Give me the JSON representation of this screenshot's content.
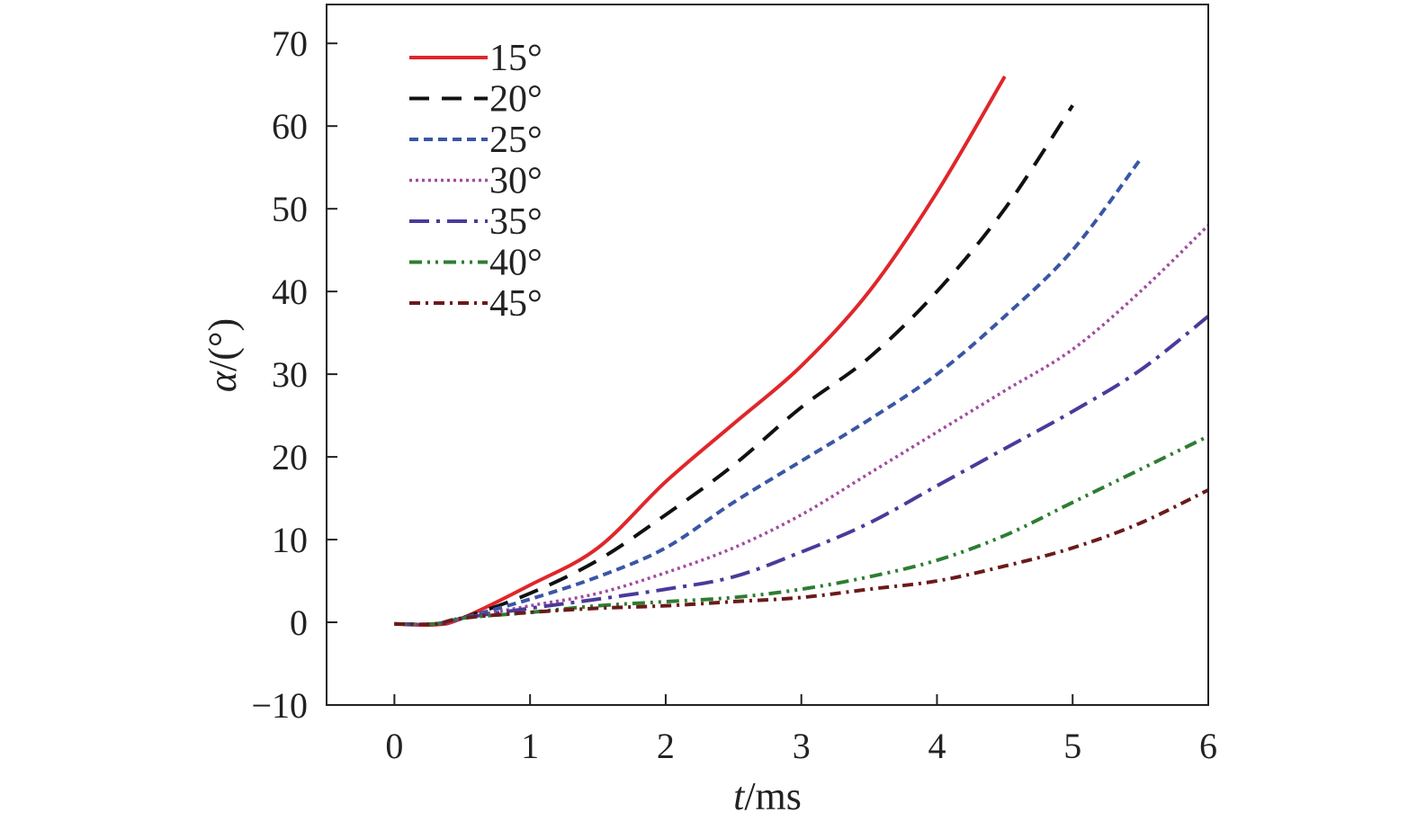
{
  "chart_data": {
    "type": "line",
    "title": "",
    "xlabel_italic": "t",
    "xlabel_rest": "/ms",
    "ylabel_italic": "α",
    "ylabel_rest": "/(°)",
    "xlim": [
      -0.5,
      6
    ],
    "ylim": [
      -10,
      74.7
    ],
    "xticks": [
      0,
      1,
      2,
      3,
      4,
      5,
      6
    ],
    "yticks": [
      -10,
      0,
      10,
      20,
      30,
      40,
      50,
      60,
      70
    ],
    "ytick_labels": [
      "−10",
      "0",
      "10",
      "20",
      "30",
      "40",
      "50",
      "60",
      "70"
    ],
    "grid": false,
    "legend_position": "top-left",
    "series": [
      {
        "name": "15°",
        "color": "#e0262a",
        "dash": "solid",
        "x": [
          0,
          0.3,
          0.5,
          1,
          1.5,
          2,
          2.5,
          3,
          3.5,
          4,
          4.5
        ],
        "y": [
          -0.2,
          -0.3,
          0.5,
          4.5,
          9,
          17,
          24,
          31,
          40,
          52,
          66
        ]
      },
      {
        "name": "20°",
        "color": "#111111",
        "dash": "long-dash",
        "x": [
          0,
          0.3,
          0.5,
          1,
          1.5,
          2,
          2.5,
          3,
          3.5,
          4,
          4.5,
          5
        ],
        "y": [
          -0.2,
          -0.2,
          0.5,
          3.5,
          7.5,
          13,
          19,
          26,
          32,
          40,
          50,
          62.5
        ]
      },
      {
        "name": "25°",
        "color": "#3a56a5",
        "dash": "short-dash",
        "x": [
          0,
          0.3,
          0.5,
          1,
          1.5,
          2,
          2.5,
          3,
          3.5,
          4,
          4.5,
          5,
          5.5
        ],
        "y": [
          -0.2,
          -0.2,
          0.5,
          2.8,
          5.5,
          9,
          14.5,
          19.5,
          24.5,
          30,
          37,
          45,
          56
        ]
      },
      {
        "name": "30°",
        "color": "#a14ba0",
        "dash": "dotted",
        "x": [
          0,
          0.3,
          0.5,
          1,
          1.5,
          2,
          2.5,
          3,
          3.5,
          4,
          4.5,
          5,
          5.5,
          6
        ],
        "y": [
          -0.2,
          -0.2,
          0.5,
          2,
          3.5,
          6,
          9,
          13,
          18,
          23,
          28,
          33,
          40,
          48
        ]
      },
      {
        "name": "35°",
        "color": "#4b3a9a",
        "dash": "dash-dot",
        "x": [
          0,
          0.3,
          0.5,
          1,
          1.5,
          2,
          2.5,
          3,
          3.5,
          4,
          4.5,
          5,
          5.5,
          6
        ],
        "y": [
          -0.2,
          -0.2,
          0.5,
          1.7,
          2.8,
          4,
          5.5,
          8.5,
          12,
          16.5,
          21,
          25.5,
          30.5,
          37
        ]
      },
      {
        "name": "40°",
        "color": "#2e7d32",
        "dash": "dash-dot-dot",
        "x": [
          0,
          0.3,
          0.5,
          1,
          1.5,
          2,
          2.5,
          3,
          3.5,
          4,
          4.5,
          5,
          5.5,
          6
        ],
        "y": [
          -0.2,
          -0.2,
          0.5,
          1.2,
          2,
          2.5,
          3,
          4,
          5.5,
          7.5,
          10.5,
          14.5,
          18.5,
          22.5
        ]
      },
      {
        "name": "45°",
        "color": "#6b1a1a",
        "dash": "dash-dot-short",
        "x": [
          0,
          0.3,
          0.5,
          1,
          1.5,
          2,
          2.5,
          3,
          3.5,
          4,
          4.5,
          5,
          5.5,
          6
        ],
        "y": [
          -0.2,
          -0.2,
          0.5,
          1.2,
          1.7,
          2,
          2.5,
          3,
          4,
          5,
          6.8,
          9,
          12,
          16
        ]
      }
    ]
  }
}
